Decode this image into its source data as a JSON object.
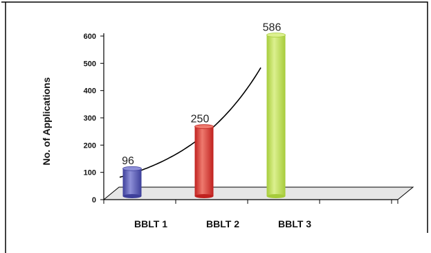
{
  "chart_data": {
    "type": "bar",
    "title": "",
    "xlabel": "",
    "ylabel": "No. of Applications",
    "categories": [
      "BBLT 1",
      "BBLT 2",
      "BBLT 3"
    ],
    "values": [
      96,
      250,
      586
    ],
    "value_labels": [
      "96",
      "250",
      "586"
    ],
    "yticks": [
      0,
      100,
      200,
      300,
      400,
      500,
      600
    ],
    "ytick_labels": [
      "0",
      "100",
      "200",
      "300",
      "400",
      "500",
      "600"
    ],
    "ylim": [
      0,
      600
    ],
    "grid": false,
    "legend": "none",
    "trendline": "exponential",
    "bar_colors": [
      "#3d3f9a",
      "#c0211f",
      "#a6cc3a"
    ],
    "bar_highlight_colors": [
      "#8e90d8",
      "#ee7a6e",
      "#dcf08f"
    ],
    "floor_color": "#e6e6e6"
  }
}
